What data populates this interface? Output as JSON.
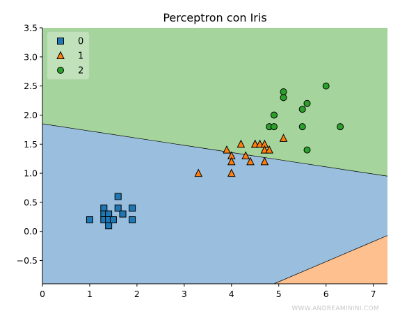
{
  "chart_data": {
    "type": "scatter",
    "title": "Perceptron con Iris",
    "xlabel": "",
    "ylabel": "",
    "xlim": [
      0,
      7.3
    ],
    "ylim": [
      -0.9,
      3.5
    ],
    "x_ticks": [
      0,
      1,
      2,
      3,
      4,
      5,
      6,
      7
    ],
    "x_tick_labels": [
      "0",
      "1",
      "2",
      "3",
      "4",
      "5",
      "6",
      "7"
    ],
    "y_ticks": [
      -0.5,
      0.0,
      0.5,
      1.0,
      1.5,
      2.0,
      2.5,
      3.0,
      3.5
    ],
    "y_tick_labels": [
      "−0.5",
      "0.0",
      "0.5",
      "1.0",
      "1.5",
      "2.0",
      "2.5",
      "3.0",
      "3.5"
    ],
    "grid": false,
    "legend_position": "top-left",
    "decision_regions": [
      {
        "class": "0",
        "color": "#9ABEDD"
      },
      {
        "class": "1",
        "color": "#FEC08E"
      },
      {
        "class": "2",
        "color": "#A5D59D"
      }
    ],
    "decision_boundaries": [
      {
        "between": [
          "0",
          "2"
        ],
        "from": [
          0,
          1.85
        ],
        "to": [
          7.3,
          0.95
        ]
      },
      {
        "between": [
          "0",
          "1"
        ],
        "from": [
          4.9,
          -0.9
        ],
        "to": [
          7.3,
          -0.07
        ]
      }
    ],
    "series": [
      {
        "name": "0",
        "marker": "square",
        "color": "#1F77B4",
        "points": [
          [
            1.0,
            0.2
          ],
          [
            1.3,
            0.4
          ],
          [
            1.3,
            0.3
          ],
          [
            1.3,
            0.2
          ],
          [
            1.4,
            0.3
          ],
          [
            1.4,
            0.2
          ],
          [
            1.4,
            0.1
          ],
          [
            1.5,
            0.2
          ],
          [
            1.6,
            0.6
          ],
          [
            1.6,
            0.4
          ],
          [
            1.7,
            0.3
          ],
          [
            1.9,
            0.4
          ],
          [
            1.9,
            0.2
          ]
        ]
      },
      {
        "name": "1",
        "marker": "triangle",
        "color": "#FF7F0E",
        "points": [
          [
            3.3,
            1.0
          ],
          [
            3.9,
            1.4
          ],
          [
            4.0,
            1.3
          ],
          [
            4.0,
            1.2
          ],
          [
            4.0,
            1.0
          ],
          [
            4.2,
            1.5
          ],
          [
            4.3,
            1.3
          ],
          [
            4.4,
            1.2
          ],
          [
            4.5,
            1.5
          ],
          [
            4.5,
            1.5
          ],
          [
            4.6,
            1.5
          ],
          [
            4.7,
            1.5
          ],
          [
            4.7,
            1.4
          ],
          [
            4.7,
            1.2
          ],
          [
            4.8,
            1.4
          ],
          [
            5.1,
            1.6
          ]
        ]
      },
      {
        "name": "2",
        "marker": "circle",
        "color": "#2CA02C",
        "points": [
          [
            4.8,
            1.8
          ],
          [
            4.9,
            2.0
          ],
          [
            4.9,
            1.8
          ],
          [
            5.1,
            2.4
          ],
          [
            5.1,
            2.3
          ],
          [
            5.5,
            2.1
          ],
          [
            5.5,
            1.8
          ],
          [
            5.6,
            2.2
          ],
          [
            5.6,
            1.4
          ],
          [
            6.0,
            2.5
          ],
          [
            6.3,
            1.8
          ]
        ]
      }
    ]
  },
  "watermark": "WWW.ANDREAMININI.COM"
}
